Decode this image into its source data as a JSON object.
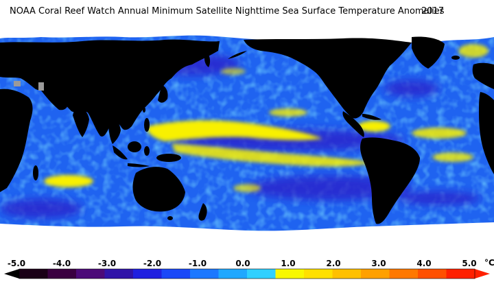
{
  "title": "NOAA Coral Reef Watch Annual Minimum Satellite Nighttime Sea Surface Temperature Anomalies",
  "year": "2017",
  "colorbar": {
    "ticks": [
      "-5.0",
      "-4.0",
      "-3.0",
      "-2.0",
      "-1.0",
      "0.0",
      "1.0",
      "2.0",
      "3.0",
      "4.0",
      "5.0"
    ],
    "unit": "°C",
    "min": -5.0,
    "max": 5.0,
    "colors": [
      "#1a0016",
      "#3a0040",
      "#4c0a78",
      "#3014a8",
      "#2020e0",
      "#1a48f8",
      "#1c78ff",
      "#20a8ff",
      "#30d0ff",
      "#f8f800",
      "#ffe000",
      "#ffc000",
      "#ffa000",
      "#ff7800",
      "#ff5000",
      "#ff2000"
    ]
  },
  "map_colors": {
    "ocean_base": "#1f63f0",
    "ocean_light": "#2aa6ff",
    "ocean_dark": "#2a1ec8",
    "warm": "#f8f000",
    "land": "#000000",
    "ice": "#ffffff"
  }
}
